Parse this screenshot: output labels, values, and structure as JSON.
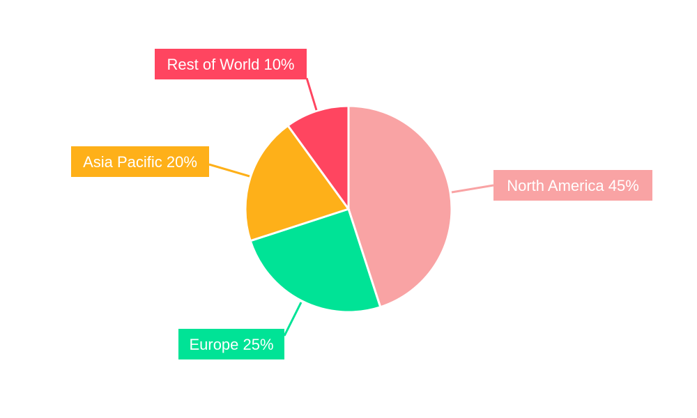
{
  "chart_data": {
    "type": "pie",
    "title": "",
    "categories": [
      "North America",
      "Europe",
      "Asia Pacific",
      "Rest of World"
    ],
    "values": [
      45,
      25,
      20,
      10
    ],
    "labels": [
      "North America 45%",
      "Europe 25%",
      "Asia Pacific 20%",
      "Rest of World 10%"
    ],
    "colors": [
      "#F9A3A4",
      "#00E396",
      "#FEB019",
      "#FF4560"
    ],
    "start_angle": "top, clockwise",
    "legend": "none"
  }
}
